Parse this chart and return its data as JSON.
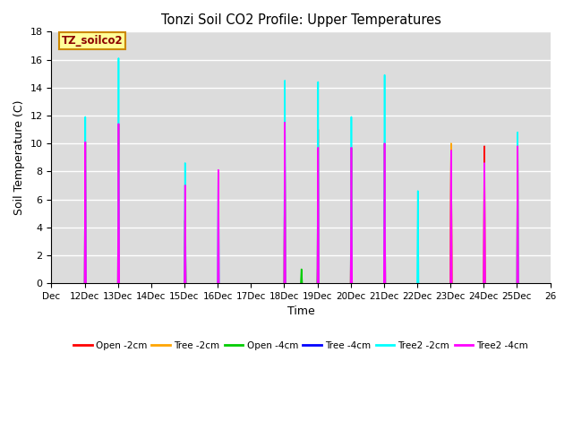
{
  "title": "Tonzi Soil CO2 Profile: Upper Temperatures",
  "ylabel": "Soil Temperature (C)",
  "xlabel": "Time",
  "annotation": "TZ_soilco2",
  "ylim": [
    0,
    18
  ],
  "bg_color": "#DCDCDC",
  "grid_color": "#FFFFFF",
  "xtick_labels": [
    "Dec",
    "12Dec",
    "13Dec",
    "14Dec",
    "15Dec",
    "16Dec",
    "17Dec",
    "18Dec",
    "19Dec",
    "20Dec",
    "21Dec",
    "22Dec",
    "23Dec",
    "24Dec",
    "25Dec",
    "26"
  ],
  "series": {
    "Open_2cm": {
      "color": "#FF0000",
      "label": "Open -2cm",
      "spikes": [
        [
          1.0,
          0,
          1.02,
          10.1,
          1.04,
          0
        ],
        [
          2.0,
          0,
          2.02,
          11.4,
          2.04,
          0
        ],
        [
          7.0,
          0,
          7.02,
          8.6,
          7.04,
          0
        ],
        [
          8.0,
          0,
          8.02,
          11.0,
          8.04,
          0
        ],
        [
          9.0,
          0,
          9.02,
          9.7,
          9.04,
          0
        ],
        [
          10.0,
          0,
          10.02,
          10.0,
          10.04,
          0
        ],
        [
          12.0,
          0,
          12.02,
          9.7,
          12.04,
          0
        ],
        [
          13.0,
          0,
          13.02,
          9.8,
          13.04,
          0
        ]
      ]
    },
    "Tree_2cm": {
      "color": "#FFA500",
      "label": "Tree -2cm",
      "spikes": [
        [
          4.0,
          0,
          4.02,
          4.5,
          4.04,
          0
        ],
        [
          7.0,
          0,
          7.02,
          8.5,
          7.04,
          0
        ],
        [
          8.0,
          0,
          8.02,
          2.7,
          8.04,
          0
        ],
        [
          9.0,
          0,
          9.02,
          7.0,
          9.04,
          0
        ],
        [
          12.0,
          0,
          12.02,
          10.0,
          12.04,
          0
        ],
        [
          14.0,
          0,
          14.02,
          10.0,
          14.04,
          0
        ]
      ]
    },
    "Open_4cm": {
      "color": "#00CC00",
      "label": "Open -4cm",
      "spikes": [
        [
          4.0,
          0,
          4.02,
          4.5,
          4.04,
          0
        ],
        [
          7.5,
          0,
          7.52,
          1.0,
          7.54,
          0
        ],
        [
          8.0,
          0,
          8.02,
          2.7,
          8.04,
          0
        ]
      ]
    },
    "Tree_4cm": {
      "color": "#0000FF",
      "label": "Tree -4cm",
      "spikes": []
    },
    "Tree2_2cm": {
      "color": "#00FFFF",
      "label": "Tree2 -2cm",
      "spikes": [
        [
          1.0,
          0,
          1.02,
          11.9,
          1.04,
          0
        ],
        [
          2.0,
          0,
          2.02,
          16.1,
          2.04,
          0
        ],
        [
          4.0,
          0,
          4.02,
          8.6,
          4.04,
          0
        ],
        [
          5.0,
          0,
          5.02,
          8.0,
          5.04,
          0
        ],
        [
          7.0,
          0,
          7.02,
          14.5,
          7.04,
          0
        ],
        [
          8.0,
          0,
          8.02,
          14.4,
          8.04,
          0
        ],
        [
          9.0,
          0,
          9.02,
          11.9,
          9.04,
          0
        ],
        [
          10.0,
          0,
          10.02,
          14.9,
          10.04,
          0
        ],
        [
          11.0,
          0,
          11.02,
          6.6,
          11.04,
          0
        ],
        [
          14.0,
          0,
          14.02,
          10.8,
          14.04,
          0
        ]
      ]
    },
    "Tree2_4cm": {
      "color": "#FF00FF",
      "label": "Tree2 -4cm",
      "spikes": [
        [
          1.0,
          0,
          1.02,
          10.1,
          1.04,
          0
        ],
        [
          2.0,
          0,
          2.02,
          11.4,
          2.04,
          0
        ],
        [
          4.0,
          0,
          4.02,
          7.0,
          4.04,
          0
        ],
        [
          5.0,
          0,
          5.02,
          8.1,
          5.04,
          0
        ],
        [
          7.0,
          0,
          7.02,
          11.5,
          7.04,
          0
        ],
        [
          8.0,
          0,
          8.02,
          9.7,
          8.04,
          0
        ],
        [
          9.0,
          0,
          9.02,
          9.7,
          9.04,
          0
        ],
        [
          10.0,
          0,
          10.02,
          10.0,
          10.04,
          0
        ],
        [
          12.0,
          0,
          12.02,
          9.5,
          12.04,
          0
        ],
        [
          13.0,
          0,
          13.02,
          8.6,
          13.04,
          0
        ],
        [
          14.0,
          0,
          14.02,
          9.8,
          14.04,
          0
        ]
      ]
    }
  }
}
